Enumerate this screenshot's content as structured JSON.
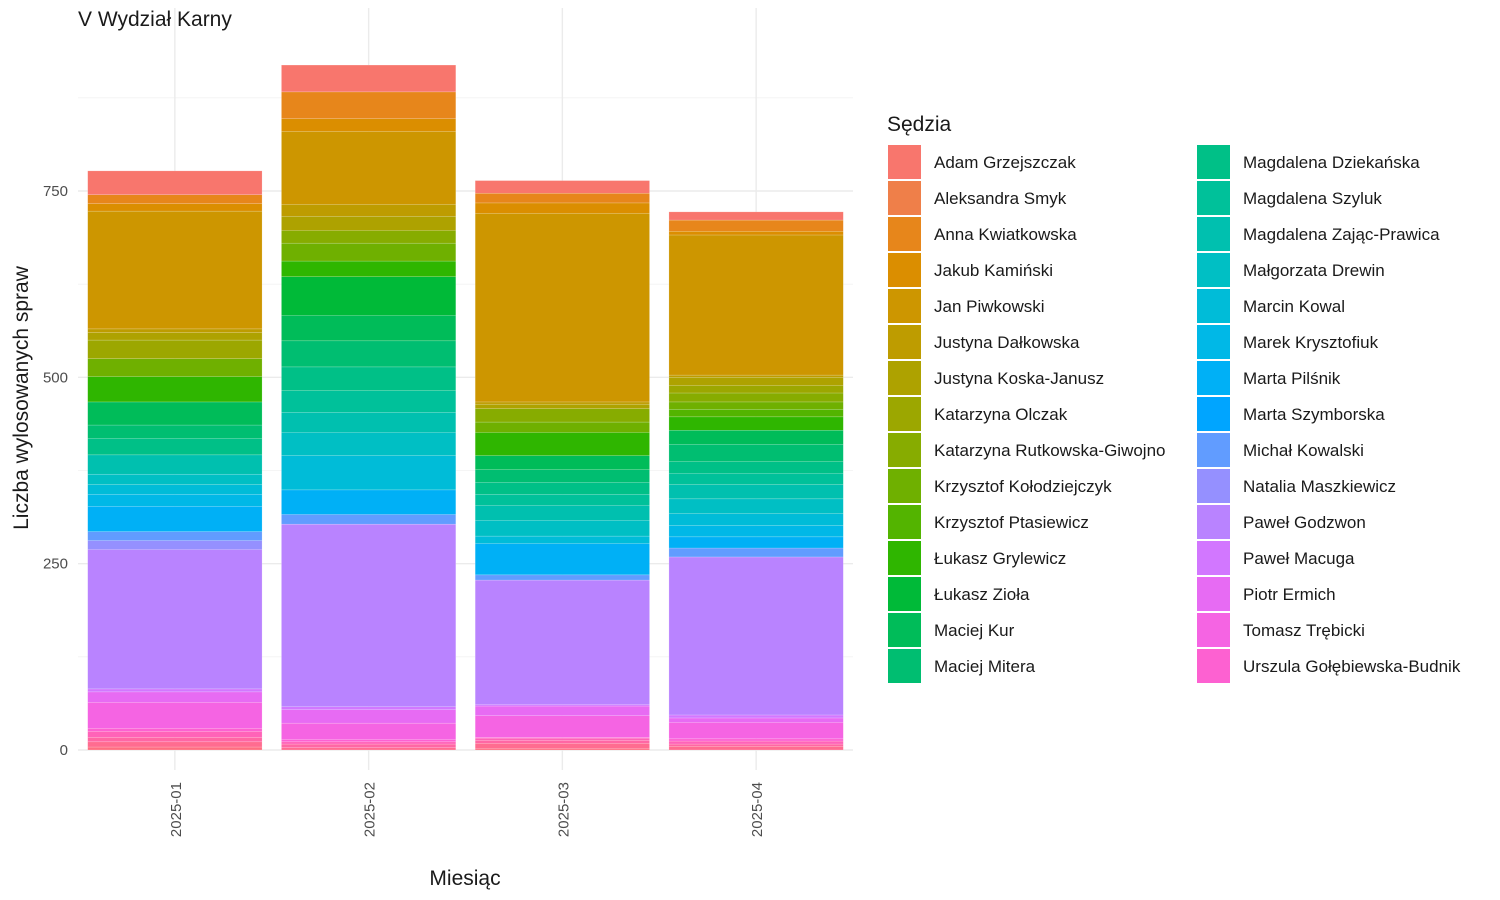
{
  "chart_data": {
    "type": "bar",
    "stacked": true,
    "title": "V Wydział Karny",
    "xlabel": "Miesiąc",
    "ylabel": "Liczba wylosowanych spraw",
    "ylim": [
      0,
      950
    ],
    "yticks": [
      0,
      250,
      500,
      750
    ],
    "grid": true,
    "legend_title": "Sędzia",
    "legend_position": "right",
    "categories": [
      "2025-01",
      "2025-02",
      "2025-03",
      "2025-04"
    ],
    "series": [
      {
        "name": "Adam Grzejszczak",
        "color": "#F8766D",
        "values": [
          32,
          36,
          17,
          11
        ]
      },
      {
        "name": "Aleksandra Smyk",
        "color": "#EF7F49",
        "values": [
          0,
          0,
          0,
          0
        ]
      },
      {
        "name": "Anna Kwiatkowska",
        "color": "#E7861B",
        "values": [
          12,
          36,
          13,
          15
        ]
      },
      {
        "name": "Jakub Kamiński",
        "color": "#DB8E00",
        "values": [
          10,
          17,
          14,
          5
        ]
      },
      {
        "name": "Jan Piwkowski",
        "color": "#CD9600",
        "values": [
          158,
          98,
          253,
          188
        ]
      },
      {
        "name": "Justyna Dałkowska",
        "color": "#BE9C00",
        "values": [
          5,
          16,
          3,
          3
        ]
      },
      {
        "name": "Justyna Koska-Janusz",
        "color": "#AEA200",
        "values": [
          10,
          19,
          6,
          11
        ]
      },
      {
        "name": "Katarzyna Olczak",
        "color": "#9CA700",
        "values": [
          25,
          0,
          0,
          10
        ]
      },
      {
        "name": "Katarzyna Rutkowska-Giwojno",
        "color": "#87AC00",
        "values": [
          0,
          17,
          18,
          12
        ]
      },
      {
        "name": "Krzysztof Kołodziejczyk",
        "color": "#6FB000",
        "values": [
          24,
          24,
          14,
          10
        ]
      },
      {
        "name": "Krzysztof Ptasiewicz",
        "color": "#53B400",
        "values": [
          0,
          0,
          0,
          10
        ]
      },
      {
        "name": "Łukasz Grylewicz",
        "color": "#2FB600",
        "values": [
          34,
          21,
          31,
          18
        ]
      },
      {
        "name": "Łukasz Zioła",
        "color": "#00BA38",
        "values": [
          0,
          52,
          0,
          0
        ]
      },
      {
        "name": "Maciej Kur",
        "color": "#00BC59",
        "values": [
          31,
          34,
          19,
          19
        ]
      },
      {
        "name": "Maciej Mitera",
        "color": "#00BE71",
        "values": [
          18,
          35,
          17,
          23
        ]
      },
      {
        "name": "Magdalena Dziekańska",
        "color": "#00C087",
        "values": [
          22,
          32,
          16,
          16
        ]
      },
      {
        "name": "Magdalena Szyluk",
        "color": "#00C19A",
        "values": [
          0,
          29,
          15,
          15
        ]
      },
      {
        "name": "Magdalena Zając-Prawica",
        "color": "#00C0AF",
        "values": [
          26,
          27,
          20,
          19
        ]
      },
      {
        "name": "Małgorzata Drewin",
        "color": "#00BFC4",
        "values": [
          14,
          31,
          21,
          20
        ]
      },
      {
        "name": "Marcin Kowal",
        "color": "#00BCD8",
        "values": [
          13,
          46,
          10,
          16
        ]
      },
      {
        "name": "Marek Krysztofiuk",
        "color": "#00B8E7",
        "values": [
          16,
          0,
          0,
          15
        ]
      },
      {
        "name": "Marta Pilśnik",
        "color": "#00B0F6",
        "values": [
          34,
          33,
          42,
          15
        ]
      },
      {
        "name": "Marta Szymborska",
        "color": "#00A5FF",
        "values": [
          0,
          0,
          0,
          0
        ]
      },
      {
        "name": "Michał Kowalski",
        "color": "#619CFF",
        "values": [
          12,
          13,
          7,
          12
        ]
      },
      {
        "name": "Natalia Maszkiewicz",
        "color": "#9590FF",
        "values": [
          12,
          0,
          0,
          0
        ]
      },
      {
        "name": "Paweł Godzwon",
        "color": "#B983FF",
        "values": [
          187,
          245,
          167,
          212
        ]
      },
      {
        "name": "Paweł Macuga",
        "color": "#D277FF",
        "values": [
          4,
          4,
          2,
          4
        ]
      },
      {
        "name": "Piotr Ermich",
        "color": "#E76BF3",
        "values": [
          14,
          18,
          13,
          6
        ]
      },
      {
        "name": "Tomasz Trębicki",
        "color": "#F564E3",
        "values": [
          35,
          22,
          29,
          22
        ]
      },
      {
        "name": "Urszula Gołębiewska-Budnik",
        "color": "#FD61D1",
        "values": [
          4,
          3,
          1,
          3
        ]
      },
      {
        "name": "",
        "color": "#FF63B8",
        "values": [
          8,
          3,
          3,
          4
        ]
      },
      {
        "name": "",
        "color": "#FF67A4",
        "values": [
          6,
          5,
          4,
          3
        ]
      },
      {
        "name": "",
        "color": "#FF6C90",
        "values": [
          7,
          3,
          7,
          5
        ]
      },
      {
        "name": "",
        "color": "#FE6E80",
        "values": [
          4,
          0,
          2,
          0
        ]
      }
    ]
  }
}
